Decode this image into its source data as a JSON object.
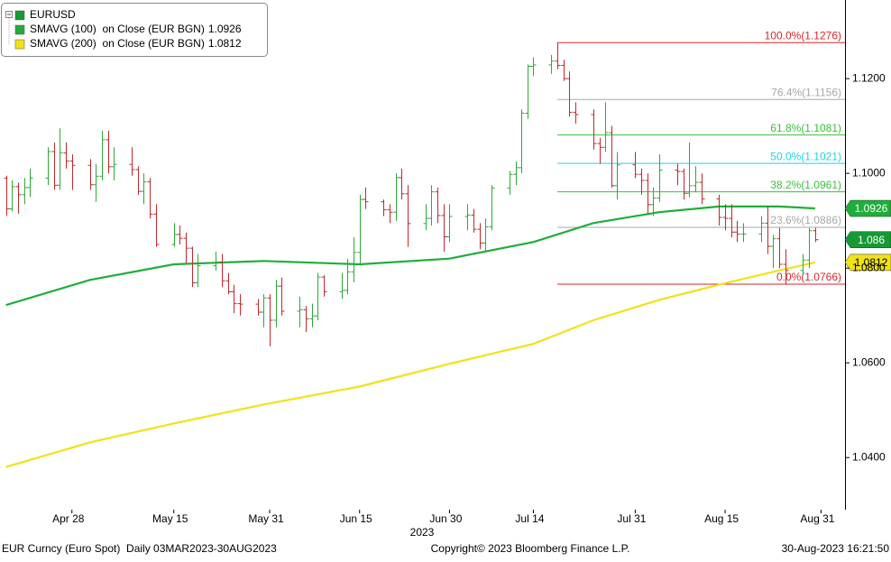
{
  "chart_data": {
    "type": "ohlc",
    "name": "EURUSD",
    "color": "#159a34",
    "up_color": "#2fa83a",
    "down_color": "#c1272d",
    "x": [
      "2023-04-17",
      "2023-04-18",
      "2023-04-19",
      "2023-04-20",
      "2023-04-21",
      "2023-04-24",
      "2023-04-25",
      "2023-04-26",
      "2023-04-27",
      "2023-04-28",
      "2023-05-01",
      "2023-05-02",
      "2023-05-03",
      "2023-05-04",
      "2023-05-05",
      "2023-05-08",
      "2023-05-09",
      "2023-05-10",
      "2023-05-11",
      "2023-05-12",
      "2023-05-15",
      "2023-05-16",
      "2023-05-17",
      "2023-05-18",
      "2023-05-19",
      "2023-05-22",
      "2023-05-23",
      "2023-05-24",
      "2023-05-25",
      "2023-05-26",
      "2023-05-29",
      "2023-05-30",
      "2023-05-31",
      "2023-06-01",
      "2023-06-02",
      "2023-06-05",
      "2023-06-06",
      "2023-06-07",
      "2023-06-08",
      "2023-06-09",
      "2023-06-12",
      "2023-06-13",
      "2023-06-14",
      "2023-06-15",
      "2023-06-16",
      "2023-06-19",
      "2023-06-20",
      "2023-06-21",
      "2023-06-22",
      "2023-06-23",
      "2023-06-26",
      "2023-06-27",
      "2023-06-28",
      "2023-06-29",
      "2023-06-30",
      "2023-07-03",
      "2023-07-04",
      "2023-07-05",
      "2023-07-06",
      "2023-07-07",
      "2023-07-10",
      "2023-07-11",
      "2023-07-12",
      "2023-07-13",
      "2023-07-14",
      "2023-07-17",
      "2023-07-18",
      "2023-07-19",
      "2023-07-20",
      "2023-07-21",
      "2023-07-24",
      "2023-07-25",
      "2023-07-26",
      "2023-07-27",
      "2023-07-28",
      "2023-07-31",
      "2023-08-01",
      "2023-08-02",
      "2023-08-03",
      "2023-08-04",
      "2023-08-07",
      "2023-08-08",
      "2023-08-09",
      "2023-08-10",
      "2023-08-11",
      "2023-08-14",
      "2023-08-15",
      "2023-08-16",
      "2023-08-17",
      "2023-08-18",
      "2023-08-21",
      "2023-08-22",
      "2023-08-23",
      "2023-08-24",
      "2023-08-25",
      "2023-08-28",
      "2023-08-29",
      "2023-08-30"
    ],
    "open": [
      1.099,
      1.0925,
      1.0972,
      1.0955,
      1.097,
      1.099,
      1.1046,
      1.0975,
      1.1043,
      1.1026,
      1.1017,
      1.0976,
      1.0994,
      1.1071,
      1.1014,
      1.1019,
      1.1008,
      1.0962,
      1.0982,
      1.0914,
      1.085,
      1.0871,
      1.0863,
      1.0842,
      1.0769,
      1.0805,
      1.0813,
      1.0773,
      1.075,
      1.0725,
      1.0724,
      1.0707,
      1.0737,
      1.069,
      1.0762,
      1.0709,
      1.0712,
      1.0693,
      1.0699,
      1.0781,
      1.075,
      1.0753,
      1.0792,
      1.0833,
      1.0945,
      1.094,
      1.0923,
      1.0918,
      1.0991,
      1.0957,
      1.0894,
      1.0905,
      1.0961,
      1.0911,
      1.0866,
      1.0909,
      1.0912,
      1.0882,
      1.0853,
      1.0887,
      1.0969,
      1.0998,
      1.1012,
      1.1127,
      1.1226,
      1.1229,
      1.1237,
      1.1228,
      1.12,
      1.1129,
      1.1124,
      1.1063,
      1.1055,
      1.1086,
      1.0974,
      1.1018,
      1.0998,
      1.0985,
      1.0934,
      1.0948,
      1.1007,
      1.1004,
      1.0958,
      1.0974,
      1.0981,
      1.0946,
      1.0907,
      1.0905,
      1.0876,
      1.0872,
      1.0872,
      1.0895,
      1.0846,
      1.0862,
      1.0808,
      1.0795,
      1.0817,
      1.0879
    ],
    "high": [
      1.0995,
      1.0985,
      1.098,
      1.099,
      1.101,
      1.1055,
      1.1065,
      1.1095,
      1.1065,
      1.104,
      1.103,
      1.102,
      1.109,
      1.109,
      1.1055,
      1.1055,
      1.1015,
      1.1,
      1.099,
      1.0935,
      1.0895,
      1.089,
      1.0875,
      1.0845,
      1.083,
      1.0835,
      1.083,
      1.079,
      1.0765,
      1.0745,
      1.0735,
      1.0745,
      1.0745,
      1.0775,
      1.078,
      1.074,
      1.072,
      1.0725,
      1.079,
      1.0785,
      1.079,
      1.082,
      1.0865,
      1.0955,
      1.097,
      1.0945,
      1.0935,
      1.1,
      1.101,
      1.0975,
      1.0935,
      1.0975,
      1.097,
      1.0935,
      1.0935,
      1.0935,
      1.0925,
      1.0895,
      1.0905,
      1.0975,
      1.1005,
      1.1025,
      1.1135,
      1.123,
      1.1245,
      1.125,
      1.1276,
      1.124,
      1.1215,
      1.115,
      1.1135,
      1.1075,
      1.115,
      1.11,
      1.1045,
      1.1045,
      1.101,
      1.1,
      1.097,
      1.104,
      1.102,
      1.101,
      1.1065,
      1.1015,
      1.1,
      1.0955,
      1.0935,
      1.0935,
      1.09,
      1.0895,
      1.091,
      1.093,
      1.087,
      1.0885,
      1.084,
      1.083,
      1.0885,
      1.0885
    ],
    "low": [
      1.091,
      1.092,
      1.0915,
      1.0935,
      1.095,
      1.0975,
      1.0965,
      1.0965,
      1.101,
      1.0965,
      1.0965,
      1.094,
      1.0985,
      1.1,
      1.0985,
      1.0995,
      1.0955,
      1.0935,
      1.0905,
      1.0845,
      1.0845,
      1.085,
      1.081,
      1.076,
      1.076,
      1.0795,
      1.076,
      1.0745,
      1.0705,
      1.07,
      1.07,
      1.0675,
      1.0635,
      1.0675,
      1.07,
      1.0675,
      1.0665,
      1.0675,
      1.069,
      1.074,
      1.0735,
      1.0745,
      1.077,
      1.081,
      1.0925,
      1.091,
      1.0895,
      1.09,
      1.0945,
      1.0845,
      1.088,
      1.089,
      1.0895,
      1.0835,
      1.0855,
      1.088,
      1.0875,
      1.084,
      1.0835,
      1.088,
      1.0955,
      1.0975,
      1.1,
      1.1115,
      1.1205,
      1.121,
      1.122,
      1.1195,
      1.112,
      1.1105,
      1.105,
      1.102,
      1.1045,
      1.097,
      1.0945,
      1.099,
      1.0955,
      1.0915,
      1.091,
      1.094,
      1.0975,
      1.0945,
      1.095,
      1.096,
      1.0935,
      1.089,
      1.088,
      1.0865,
      1.0855,
      1.0855,
      1.0855,
      1.083,
      1.08,
      1.08,
      1.0765,
      1.0785,
      1.08,
      1.0855
    ],
    "close": [
      1.0925,
      1.0972,
      1.0955,
      1.097,
      1.099,
      1.1046,
      1.0975,
      1.1043,
      1.1026,
      1.1017,
      1.0976,
      1.0994,
      1.1071,
      1.1014,
      1.1019,
      1.1008,
      1.0962,
      1.0982,
      1.0914,
      1.085,
      1.0871,
      1.0863,
      1.0842,
      1.0769,
      1.0805,
      1.0813,
      1.0773,
      1.075,
      1.0725,
      1.0724,
      1.0707,
      1.0737,
      1.069,
      1.0762,
      1.0709,
      1.0712,
      1.0693,
      1.0699,
      1.0781,
      1.075,
      1.0753,
      1.0792,
      1.0833,
      1.0945,
      1.094,
      1.0923,
      1.0918,
      1.0991,
      1.0957,
      1.0894,
      1.0905,
      1.0961,
      1.0911,
      1.0866,
      1.0909,
      1.0912,
      1.0882,
      1.0853,
      1.0887,
      1.0969,
      1.0998,
      1.1012,
      1.1127,
      1.1226,
      1.1229,
      1.1237,
      1.1228,
      1.12,
      1.1129,
      1.1124,
      1.1063,
      1.1055,
      1.1086,
      1.0974,
      1.1018,
      1.0998,
      1.0985,
      1.0934,
      1.0948,
      1.1007,
      1.1004,
      1.0958,
      1.0974,
      1.0981,
      1.0946,
      1.0907,
      1.0905,
      1.0876,
      1.0872,
      1.0872,
      1.0895,
      1.0846,
      1.0862,
      1.0808,
      1.0795,
      1.0817,
      1.0879,
      1.086
    ],
    "series": [
      {
        "name": "SMAVG (100)  on Close (EUR BGN)",
        "color": "#1fae3a",
        "x": [
          "2023-04-17",
          "2023-05-01",
          "2023-05-15",
          "2023-05-30",
          "2023-06-15",
          "2023-06-30",
          "2023-07-14",
          "2023-07-24",
          "2023-08-04",
          "2023-08-14",
          "2023-08-24",
          "2023-08-30"
        ],
        "values": [
          1.0722,
          1.0775,
          1.0808,
          1.0815,
          1.0808,
          1.082,
          1.0855,
          1.0895,
          1.0918,
          1.093,
          1.093,
          1.0926
        ]
      },
      {
        "name": "SMAVG (200)  on Close (EUR BGN)",
        "color": "#f0e21a",
        "x": [
          "2023-04-17",
          "2023-05-01",
          "2023-05-15",
          "2023-05-30",
          "2023-06-15",
          "2023-06-30",
          "2023-07-14",
          "2023-07-24",
          "2023-08-04",
          "2023-08-14",
          "2023-08-24",
          "2023-08-30"
        ],
        "values": [
          1.038,
          1.0432,
          1.0472,
          1.0512,
          1.055,
          1.0598,
          1.064,
          1.069,
          1.0733,
          1.0765,
          1.0795,
          1.0812
        ]
      }
    ],
    "retracement": [
      {
        "value": 1.1276,
        "label": "100.0%(1.1276)",
        "color": "#d2282e"
      },
      {
        "value": 1.1156,
        "label": "76.4%(1.1156)",
        "color": "#a8a8a8"
      },
      {
        "value": 1.1081,
        "label": "61.8%(1.1081)",
        "color": "#3cbf3c"
      },
      {
        "value": 1.1021,
        "label": "50.0%(1.1021)",
        "color": "#1ed2e6"
      },
      {
        "value": 1.0961,
        "label": "38.2%(1.0961)",
        "color": "#3cbf3c"
      },
      {
        "value": 1.0886,
        "label": "23.6%(1.0886)",
        "color": "#a8a8a8"
      },
      {
        "value": 1.0766,
        "label": "0.0%(1.0766)",
        "color": "#d2282e"
      }
    ],
    "xlim": [
      "2023-04-16",
      "2023-09-04"
    ],
    "xticks": [
      {
        "value": "2023-04-28",
        "label": "Apr 28"
      },
      {
        "value": "2023-05-15",
        "label": "May 15"
      },
      {
        "value": "2023-05-31",
        "label": "May 31"
      },
      {
        "value": "2023-06-15",
        "label": "Jun 15"
      },
      {
        "value": "2023-06-30",
        "label": "Jun 30"
      },
      {
        "value": "2023-07-14",
        "label": "Jul 14"
      },
      {
        "value": "2023-07-31",
        "label": "Jul 31"
      },
      {
        "value": "2023-08-15",
        "label": "Aug 15"
      },
      {
        "value": "2023-08-31",
        "label": "Aug 31"
      }
    ],
    "year_label": "2023",
    "ylim": [
      1.029,
      1.1366
    ],
    "yticks": [
      {
        "value": 1.04,
        "label": "1.0400"
      },
      {
        "value": 1.06,
        "label": "1.0600"
      },
      {
        "value": 1.08,
        "label": "1.0800"
      },
      {
        "value": 1.1,
        "label": "1.1000"
      },
      {
        "value": 1.12,
        "label": "1.1200"
      }
    ],
    "footer": {
      "left": "EUR Curncy (Euro Spot)  Daily 03MAR2023-30AUG2023",
      "center": "Copyright© 2023 Bloomberg Finance L.P.",
      "right": "30-Aug-2023 16:21:50"
    }
  }
}
